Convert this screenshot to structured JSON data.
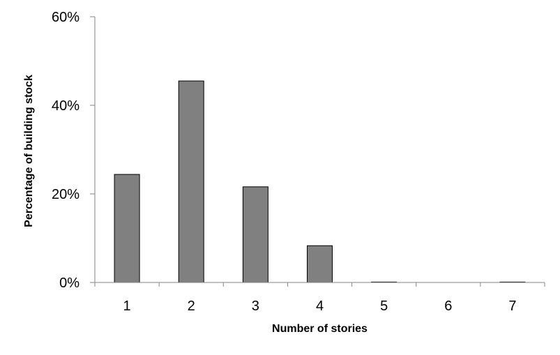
{
  "chart_data": {
    "type": "bar",
    "title": "",
    "xlabel": "Number of stories",
    "ylabel": "Percentage of building stock",
    "categories": [
      "1",
      "2",
      "3",
      "4",
      "5",
      "6",
      "7"
    ],
    "values": [
      24.4,
      45.5,
      21.6,
      8.3,
      0.1,
      0.0,
      0.1
    ],
    "ylim": [
      0,
      60
    ],
    "yticks": [
      0,
      20,
      40,
      60
    ],
    "ytick_labels": [
      "0%",
      "20%",
      "40%",
      "60%"
    ],
    "grid": false,
    "legend": "none",
    "bar_color": "#808080",
    "bar_edge_color": "#000000"
  }
}
